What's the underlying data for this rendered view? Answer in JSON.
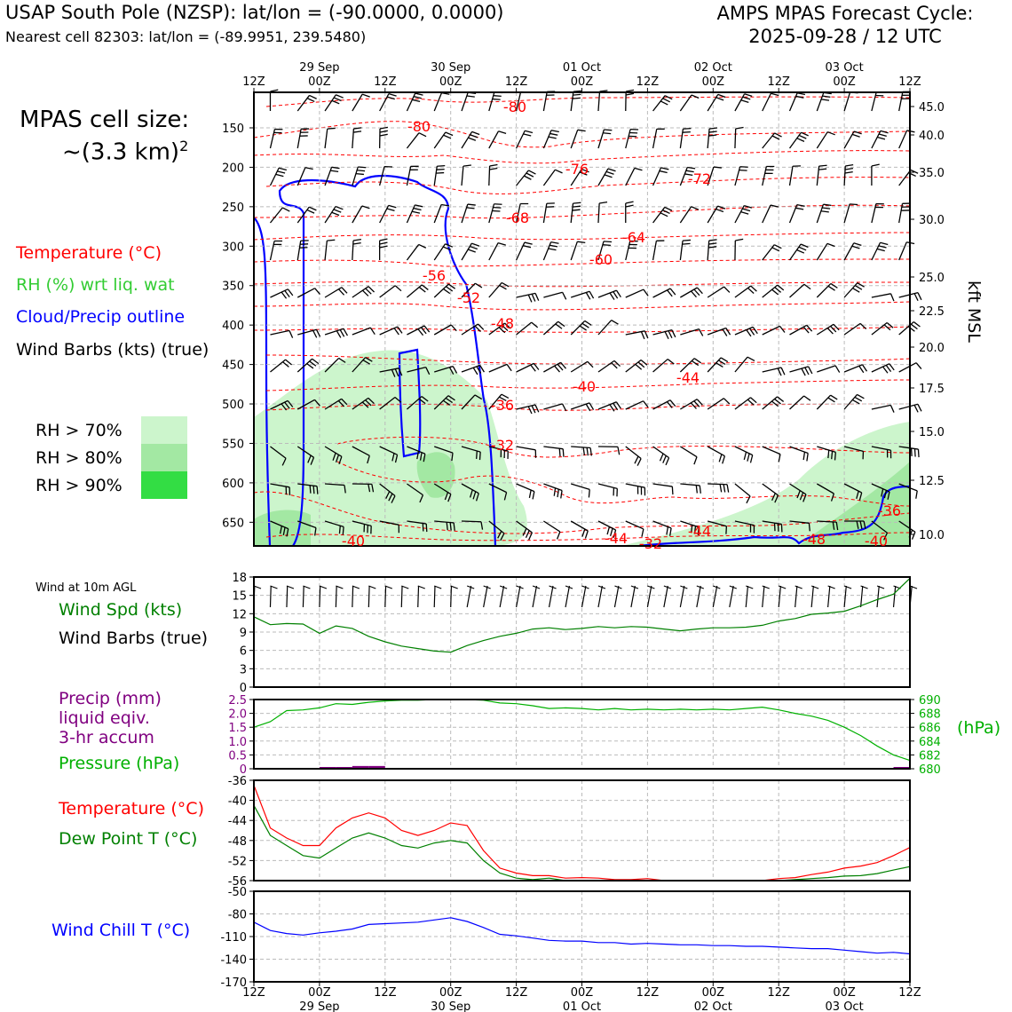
{
  "header": {
    "title_left": "USAP South Pole (NZSP): lat/lon = (-90.0000, 0.0000)",
    "subtitle_left": "Nearest cell 82303: lat/lon = (-89.9951, 239.5480)",
    "title_right_line1": "AMPS MPAS Forecast Cycle:",
    "title_right_line2": "2025-09-28 / 12 UTC"
  },
  "legend": {
    "cell_size_line1": "MPAS cell size:",
    "cell_size_line2": "~(3.3 km)",
    "cell_size_sup": "2",
    "temperature": "Temperature (°C)",
    "rh": "RH (%) wrt liq. wat",
    "cloud": "Cloud/Precip outline",
    "barbs": "Wind Barbs (kts) (true)",
    "rh70": "RH > 70%",
    "rh80": "RH > 80%",
    "rh90": "RH > 90%",
    "wind10m": "Wind at 10m AGL",
    "windspd": "Wind Spd (kts)",
    "windbarbs": "Wind Barbs (true)",
    "precip1": "Precip (mm)",
    "precip2": "liquid eqiv.",
    "precip3": "3-hr accum",
    "pressure": "Pressure (hPa)",
    "pressure_unit": "(hPa)",
    "temp2": "Temperature (°C)",
    "dewpoint": "Dew Point T (°C)",
    "windchill": "Wind Chill T (°C)",
    "kft": "kft MSL"
  },
  "colors": {
    "temperature": "#ff0000",
    "rh_label": "#33cc33",
    "cloud": "#0000ff",
    "rh70": "#ccf5cc",
    "rh80": "#a3e8a3",
    "rh90": "#33dd44",
    "windspd": "#008000",
    "precip": "#800080",
    "pressure": "#00b000",
    "dewpoint": "#008000",
    "windchill": "#0000ff"
  },
  "chart_data": {
    "type": "line",
    "time_ticks_top": [
      {
        "hour": "12Z",
        "date": ""
      },
      {
        "hour": "00Z",
        "date": "29 Sep"
      },
      {
        "hour": "12Z",
        "date": ""
      },
      {
        "hour": "00Z",
        "date": "30 Sep"
      },
      {
        "hour": "12Z",
        "date": ""
      },
      {
        "hour": "00Z",
        "date": "01 Oct"
      },
      {
        "hour": "12Z",
        "date": ""
      },
      {
        "hour": "00Z",
        "date": "02 Oct"
      },
      {
        "hour": "12Z",
        "date": ""
      },
      {
        "hour": "00Z",
        "date": "03 Oct"
      },
      {
        "hour": "12Z",
        "date": ""
      }
    ],
    "x_hours": [
      0,
      3,
      6,
      9,
      12,
      15,
      18,
      21,
      24,
      27,
      30,
      33,
      36,
      39,
      42,
      45,
      48,
      51,
      54,
      57,
      60,
      63,
      66,
      69,
      72,
      75,
      78,
      81,
      84,
      87,
      90,
      93,
      96,
      99,
      102,
      105,
      108,
      111,
      114,
      117,
      120
    ],
    "profile": {
      "pressure_ticks": [
        150,
        200,
        250,
        300,
        350,
        400,
        450,
        500,
        550,
        600,
        650
      ],
      "kft_ticks": [
        "45.0",
        "40.0",
        "35.0",
        "30.0",
        "25.0",
        "22.5",
        "20.0",
        "17.5",
        "15.0",
        "12.5",
        "10.0"
      ],
      "temperature_contour_labels": [
        "-80",
        "-80",
        "-76",
        "-72",
        "-68",
        "-64",
        "-60",
        "-56",
        "-52",
        "-48",
        "-44",
        "-40",
        "-36",
        "-32",
        "-36",
        "-40",
        "-44",
        "-32",
        "-44",
        "-48",
        "-40"
      ]
    },
    "wind_speed": {
      "yticks": [
        0,
        3,
        6,
        9,
        12,
        15,
        18
      ],
      "values": [
        11.5,
        10.2,
        10.4,
        10.3,
        8.8,
        10.0,
        9.6,
        8.3,
        7.4,
        6.7,
        6.3,
        5.9,
        5.7,
        6.8,
        7.6,
        8.3,
        8.8,
        9.5,
        9.7,
        9.4,
        9.6,
        9.9,
        9.7,
        9.9,
        9.8,
        9.5,
        9.2,
        9.5,
        9.7,
        9.7,
        9.8,
        10.1,
        10.8,
        11.2,
        11.9,
        12.1,
        12.4,
        13.3,
        14.3,
        15.2,
        17.8
      ]
    },
    "precip": {
      "yticks": [
        "0",
        "0.5",
        "1.0",
        "1.5",
        "2.0",
        "2.5"
      ],
      "bars": [
        {
          "x_hour": 12,
          "value": 0.05
        },
        {
          "x_hour": 15,
          "value": 0.05
        },
        {
          "x_hour": 18,
          "value": 0.1
        },
        {
          "x_hour": 21,
          "value": 0.1
        },
        {
          "x_hour": 117,
          "value": 0.05
        }
      ]
    },
    "pressure": {
      "yticks": [
        "680",
        "682",
        "684",
        "686",
        "688",
        "690"
      ],
      "values": [
        686.0,
        686.8,
        688.4,
        688.5,
        688.8,
        689.4,
        689.3,
        689.6,
        689.8,
        689.9,
        689.9,
        690.0,
        690.2,
        690.0,
        689.9,
        689.5,
        689.4,
        689.1,
        688.7,
        688.8,
        688.7,
        688.5,
        688.7,
        688.5,
        688.6,
        688.5,
        688.6,
        688.5,
        688.6,
        688.5,
        688.7,
        688.9,
        688.5,
        688.0,
        687.6,
        687.0,
        686.0,
        684.8,
        683.3,
        682.0,
        681.2
      ]
    },
    "temperature": {
      "yticks": [
        "-36",
        "-40",
        "-44",
        "-48",
        "-52",
        "-56"
      ],
      "values": [
        -37.0,
        -45.5,
        -47.5,
        -49.0,
        -49.0,
        -45.5,
        -43.5,
        -42.5,
        -43.5,
        -46.0,
        -47.0,
        -46.0,
        -44.5,
        -45.0,
        -50.0,
        -53.5,
        -54.5,
        -55.0,
        -55.0,
        -55.5,
        -55.4,
        -55.5,
        -55.8,
        -55.8,
        -55.6,
        -56.4,
        -56.8,
        -56.8,
        -56.5,
        -56.6,
        -56.5,
        -56.2,
        -55.6,
        -55.4,
        -54.8,
        -54.3,
        -53.5,
        -53.1,
        -52.4,
        -51.0,
        -49.4
      ]
    },
    "dewpoint": {
      "yticks": [
        "-36",
        "-40",
        "-44",
        "-48",
        "-52",
        "-56"
      ],
      "values": [
        -41.0,
        -47.0,
        -49.0,
        -51.0,
        -51.5,
        -49.5,
        -47.5,
        -46.5,
        -47.5,
        -49.0,
        -49.5,
        -48.5,
        -48.0,
        -48.5,
        -52.0,
        -54.5,
        -55.5,
        -55.8,
        -55.5,
        -56.0,
        -56.0,
        -56.0,
        -56.2,
        -56.3,
        -56.3,
        -56.6,
        -56.8,
        -56.8,
        -56.7,
        -56.7,
        -56.5,
        -56.3,
        -56.0,
        -55.8,
        -55.6,
        -55.4,
        -55.1,
        -55.0,
        -54.6,
        -53.9,
        -53.2
      ]
    },
    "wind_chill": {
      "yticks": [
        "-50",
        "-80",
        "-110",
        "-140",
        "-170"
      ],
      "values": [
        -91,
        -102,
        -106,
        -108,
        -105,
        -103,
        -100,
        -94,
        -93,
        -92,
        -91,
        -88,
        -85,
        -90,
        -98,
        -107,
        -109,
        -112,
        -115,
        -116,
        -116,
        -118,
        -118,
        -120,
        -119,
        -120,
        -121,
        -121,
        -122,
        -122,
        -123,
        -123,
        -124,
        -125,
        -126,
        -126,
        -128,
        -130,
        -132,
        -131,
        -133
      ]
    }
  }
}
